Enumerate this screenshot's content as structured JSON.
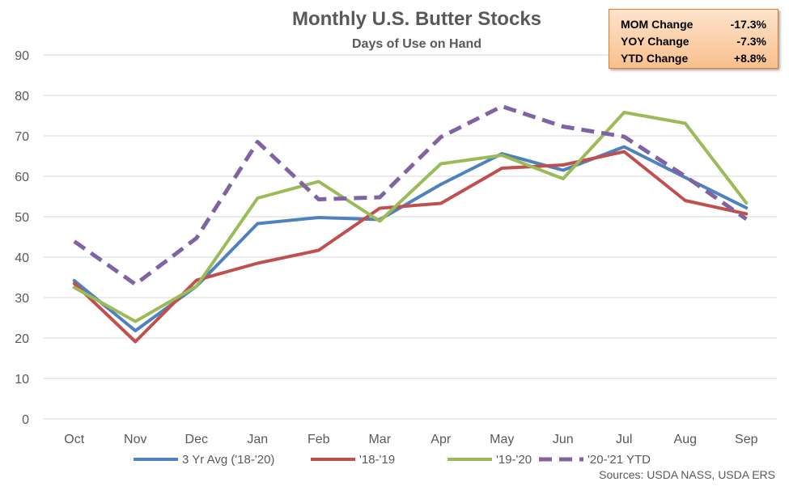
{
  "chart_data": {
    "type": "line",
    "title": "Monthly U.S. Butter Stocks",
    "subtitle": "Days of Use on Hand",
    "categories": [
      "Oct",
      "Nov",
      "Dec",
      "Jan",
      "Feb",
      "Mar",
      "Apr",
      "May",
      "Jun",
      "Jul",
      "Aug",
      "Sep"
    ],
    "ylim": [
      0,
      90
    ],
    "yticks": [
      0,
      10,
      20,
      30,
      40,
      50,
      60,
      70,
      80,
      90
    ],
    "grid": true,
    "legend_position": "bottom",
    "series": [
      {
        "name": "3 Yr Avg ('18-'20)",
        "color": "#4f81bd",
        "style": "solid",
        "values": [
          34.2,
          21.8,
          32.8,
          48.3,
          49.8,
          49.3,
          58.0,
          65.6,
          61.5,
          67.3,
          59.7,
          52.2
        ]
      },
      {
        "name": "'18-'19",
        "color": "#c0504d",
        "style": "solid",
        "values": [
          33.5,
          19.1,
          34.3,
          38.5,
          41.7,
          52.1,
          53.3,
          62.0,
          62.8,
          66.1,
          54.0,
          50.7
        ]
      },
      {
        "name": "'19-'20",
        "color": "#9bbb59",
        "style": "solid",
        "values": [
          32.5,
          24.1,
          32.8,
          54.6,
          58.7,
          48.9,
          63.1,
          65.2,
          59.4,
          75.8,
          73.1,
          53.4
        ]
      },
      {
        "name": "'20-'21 YTD",
        "color": "#8064a2",
        "style": "dashed",
        "values": [
          43.9,
          33.3,
          44.7,
          68.5,
          54.3,
          54.8,
          69.7,
          77.3,
          72.3,
          69.8,
          60.0,
          49.4
        ]
      }
    ]
  },
  "stats": [
    {
      "label": "MOM Change",
      "value": "-17.3%"
    },
    {
      "label": "YOY Change",
      "value": "-7.3%"
    },
    {
      "label": "YTD Change",
      "value": "+8.8%"
    }
  ],
  "source": "Sources: USDA NASS, USDA ERS"
}
